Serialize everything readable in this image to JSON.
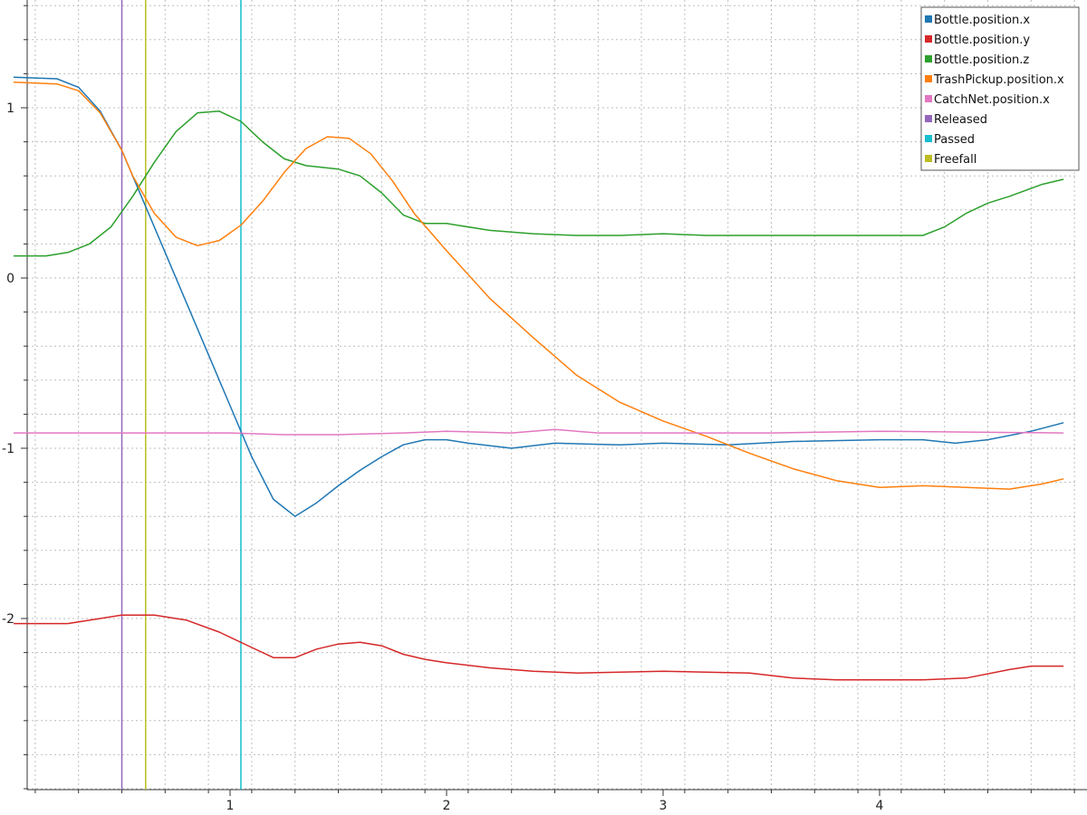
{
  "chart_data": {
    "type": "line",
    "title": "",
    "xlabel": "",
    "ylabel": "",
    "xlim": [
      -0.12,
      4.9
    ],
    "ylim": [
      -3.0,
      1.7
    ],
    "grid": true,
    "legend_placement": "top-right",
    "x_ticks": [
      1,
      2,
      3,
      4
    ],
    "x_tick_labels": [
      "1",
      "2",
      "3",
      "4"
    ],
    "y_ticks": [
      1,
      0,
      -1,
      -2
    ],
    "y_tick_labels": [
      "1",
      "0",
      "-1",
      "-2"
    ],
    "series": [
      {
        "name": "Bottle.position.x",
        "color": "#1f77b4",
        "points": [
          [
            0.0,
            1.18
          ],
          [
            0.2,
            1.17
          ],
          [
            0.3,
            1.12
          ],
          [
            0.4,
            0.98
          ],
          [
            0.5,
            0.75
          ],
          [
            0.6,
            0.45
          ],
          [
            0.7,
            0.15
          ],
          [
            0.8,
            -0.15
          ],
          [
            0.9,
            -0.45
          ],
          [
            1.0,
            -0.75
          ],
          [
            1.1,
            -1.05
          ],
          [
            1.2,
            -1.3
          ],
          [
            1.3,
            -1.4
          ],
          [
            1.4,
            -1.32
          ],
          [
            1.5,
            -1.22
          ],
          [
            1.6,
            -1.13
          ],
          [
            1.7,
            -1.05
          ],
          [
            1.8,
            -0.98
          ],
          [
            1.9,
            -0.95
          ],
          [
            2.0,
            -0.95
          ],
          [
            2.1,
            -0.97
          ],
          [
            2.3,
            -1.0
          ],
          [
            2.5,
            -0.97
          ],
          [
            2.8,
            -0.98
          ],
          [
            3.0,
            -0.97
          ],
          [
            3.3,
            -0.98
          ],
          [
            3.6,
            -0.96
          ],
          [
            4.0,
            -0.95
          ],
          [
            4.2,
            -0.95
          ],
          [
            4.35,
            -0.97
          ],
          [
            4.5,
            -0.95
          ],
          [
            4.7,
            -0.9
          ],
          [
            4.85,
            -0.85
          ]
        ]
      },
      {
        "name": "Bottle.position.y",
        "color": "#d62728",
        "points": [
          [
            0.0,
            -2.03
          ],
          [
            0.25,
            -2.03
          ],
          [
            0.4,
            -2.0
          ],
          [
            0.5,
            -1.98
          ],
          [
            0.65,
            -1.98
          ],
          [
            0.8,
            -2.01
          ],
          [
            0.95,
            -2.08
          ],
          [
            1.1,
            -2.17
          ],
          [
            1.2,
            -2.23
          ],
          [
            1.3,
            -2.23
          ],
          [
            1.4,
            -2.18
          ],
          [
            1.5,
            -2.15
          ],
          [
            1.6,
            -2.14
          ],
          [
            1.7,
            -2.16
          ],
          [
            1.8,
            -2.21
          ],
          [
            1.9,
            -2.24
          ],
          [
            2.0,
            -2.26
          ],
          [
            2.2,
            -2.29
          ],
          [
            2.4,
            -2.31
          ],
          [
            2.6,
            -2.32
          ],
          [
            3.0,
            -2.31
          ],
          [
            3.4,
            -2.32
          ],
          [
            3.6,
            -2.35
          ],
          [
            3.8,
            -2.36
          ],
          [
            4.2,
            -2.36
          ],
          [
            4.4,
            -2.35
          ],
          [
            4.6,
            -2.3
          ],
          [
            4.7,
            -2.28
          ],
          [
            4.85,
            -2.28
          ]
        ]
      },
      {
        "name": "Bottle.position.z",
        "color": "#2ca02c",
        "points": [
          [
            0.0,
            0.13
          ],
          [
            0.15,
            0.13
          ],
          [
            0.25,
            0.15
          ],
          [
            0.35,
            0.2
          ],
          [
            0.45,
            0.3
          ],
          [
            0.55,
            0.48
          ],
          [
            0.65,
            0.68
          ],
          [
            0.75,
            0.86
          ],
          [
            0.85,
            0.97
          ],
          [
            0.95,
            0.98
          ],
          [
            1.05,
            0.92
          ],
          [
            1.15,
            0.8
          ],
          [
            1.25,
            0.7
          ],
          [
            1.35,
            0.66
          ],
          [
            1.5,
            0.64
          ],
          [
            1.6,
            0.6
          ],
          [
            1.7,
            0.5
          ],
          [
            1.8,
            0.37
          ],
          [
            1.9,
            0.32
          ],
          [
            2.0,
            0.32
          ],
          [
            2.2,
            0.28
          ],
          [
            2.4,
            0.26
          ],
          [
            2.6,
            0.25
          ],
          [
            2.8,
            0.25
          ],
          [
            3.0,
            0.26
          ],
          [
            3.2,
            0.25
          ],
          [
            3.6,
            0.25
          ],
          [
            4.0,
            0.25
          ],
          [
            4.2,
            0.25
          ],
          [
            4.3,
            0.3
          ],
          [
            4.4,
            0.38
          ],
          [
            4.5,
            0.44
          ],
          [
            4.6,
            0.48
          ],
          [
            4.75,
            0.55
          ],
          [
            4.85,
            0.58
          ]
        ]
      },
      {
        "name": "TrashPickup.position.x",
        "color": "#ff7f0e",
        "points": [
          [
            0.0,
            1.15
          ],
          [
            0.2,
            1.14
          ],
          [
            0.3,
            1.1
          ],
          [
            0.4,
            0.97
          ],
          [
            0.5,
            0.75
          ],
          [
            0.55,
            0.6
          ],
          [
            0.65,
            0.38
          ],
          [
            0.75,
            0.24
          ],
          [
            0.85,
            0.19
          ],
          [
            0.95,
            0.22
          ],
          [
            1.05,
            0.31
          ],
          [
            1.15,
            0.45
          ],
          [
            1.25,
            0.62
          ],
          [
            1.35,
            0.76
          ],
          [
            1.45,
            0.83
          ],
          [
            1.55,
            0.82
          ],
          [
            1.65,
            0.73
          ],
          [
            1.75,
            0.57
          ],
          [
            1.85,
            0.38
          ],
          [
            2.0,
            0.16
          ],
          [
            2.2,
            -0.12
          ],
          [
            2.4,
            -0.35
          ],
          [
            2.6,
            -0.57
          ],
          [
            2.8,
            -0.73
          ],
          [
            3.0,
            -0.84
          ],
          [
            3.2,
            -0.93
          ],
          [
            3.4,
            -1.03
          ],
          [
            3.6,
            -1.12
          ],
          [
            3.8,
            -1.19
          ],
          [
            4.0,
            -1.23
          ],
          [
            4.2,
            -1.22
          ],
          [
            4.4,
            -1.23
          ],
          [
            4.6,
            -1.24
          ],
          [
            4.75,
            -1.21
          ],
          [
            4.85,
            -1.18
          ]
        ]
      },
      {
        "name": "CatchNet.position.x",
        "color": "#e377c2",
        "points": [
          [
            0.0,
            -0.91
          ],
          [
            1.0,
            -0.91
          ],
          [
            1.25,
            -0.92
          ],
          [
            1.5,
            -0.92
          ],
          [
            1.8,
            -0.91
          ],
          [
            2.0,
            -0.9
          ],
          [
            2.3,
            -0.91
          ],
          [
            2.5,
            -0.89
          ],
          [
            2.7,
            -0.91
          ],
          [
            3.5,
            -0.91
          ],
          [
            4.0,
            -0.9
          ],
          [
            4.85,
            -0.91
          ]
        ]
      }
    ],
    "markers": [
      {
        "name": "Released",
        "color": "#9467bd",
        "x": 0.5
      },
      {
        "name": "Passed",
        "color": "#17becf",
        "x": 1.05
      },
      {
        "name": "Freefall",
        "color": "#bcbd22",
        "x": 0.61
      }
    ]
  }
}
